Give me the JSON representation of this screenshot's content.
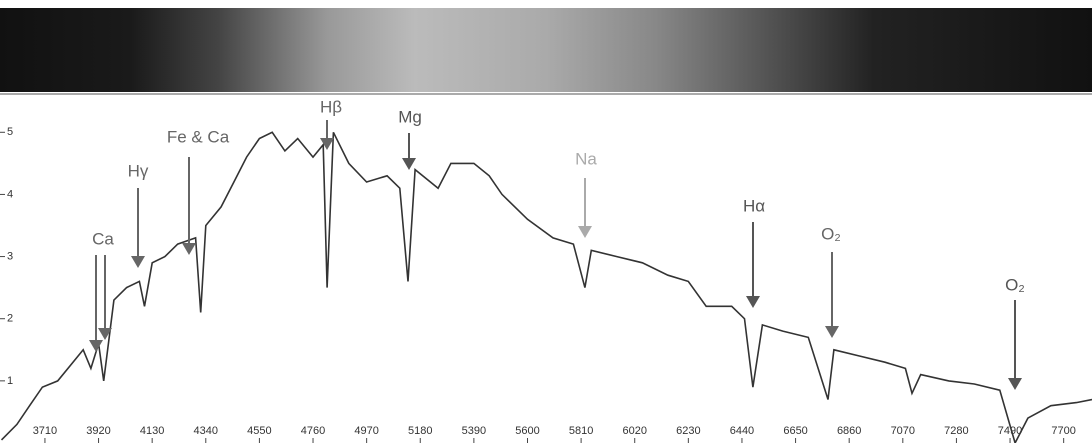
{
  "chart_data": {
    "type": "line",
    "x": [
      3540,
      3600,
      3650,
      3700,
      3760,
      3820,
      3860,
      3890,
      3920,
      3940,
      3980,
      4030,
      4080,
      4100,
      4130,
      4180,
      4230,
      4300,
      4320,
      4340,
      4400,
      4450,
      4500,
      4550,
      4600,
      4650,
      4700,
      4760,
      4800,
      4815,
      4840,
      4900,
      4970,
      5050,
      5100,
      5132,
      5160,
      5250,
      5300,
      5390,
      5450,
      5500,
      5600,
      5700,
      5780,
      5825,
      5850,
      5950,
      6050,
      6150,
      6230,
      6300,
      6400,
      6450,
      6483,
      6520,
      6600,
      6700,
      6777,
      6800,
      6900,
      7000,
      7080,
      7106,
      7140,
      7250,
      7350,
      7450,
      7510,
      7560,
      7650,
      7750,
      7811
    ],
    "values": [
      0.05,
      0.3,
      0.6,
      0.9,
      1.0,
      1.3,
      1.5,
      1.2,
      1.6,
      1.0,
      2.3,
      2.5,
      2.6,
      2.2,
      2.9,
      3.0,
      3.2,
      3.3,
      2.1,
      3.5,
      3.8,
      4.2,
      4.6,
      4.9,
      5.0,
      4.7,
      4.9,
      4.6,
      4.8,
      2.5,
      5.0,
      4.5,
      4.2,
      4.3,
      4.1,
      2.6,
      4.4,
      4.1,
      4.5,
      4.5,
      4.3,
      4.0,
      3.6,
      3.3,
      3.2,
      2.5,
      3.1,
      3.0,
      2.9,
      2.7,
      2.6,
      2.2,
      2.2,
      2.0,
      0.9,
      1.9,
      1.8,
      1.7,
      0.7,
      1.5,
      1.4,
      1.3,
      1.2,
      0.8,
      1.1,
      1.0,
      0.95,
      0.85,
      0.0,
      0.4,
      0.6,
      0.65,
      0.7
    ],
    "color": "#333333",
    "xlim": [
      3534,
      7811
    ],
    "ylim": [
      0,
      5.6
    ],
    "xticks": [
      3710,
      3920,
      4130,
      4340,
      4550,
      4760,
      4970,
      5180,
      5390,
      5600,
      5810,
      6020,
      6230,
      6440,
      6650,
      6860,
      7070,
      7280,
      7490,
      7700
    ],
    "yticks": [
      1,
      2,
      3,
      4,
      5
    ],
    "annotations": [
      "Ca",
      "Hγ",
      "Fe & Ca",
      "Hβ",
      "Mg",
      "Na",
      "Hα",
      "O₂",
      "O₂"
    ]
  }
}
